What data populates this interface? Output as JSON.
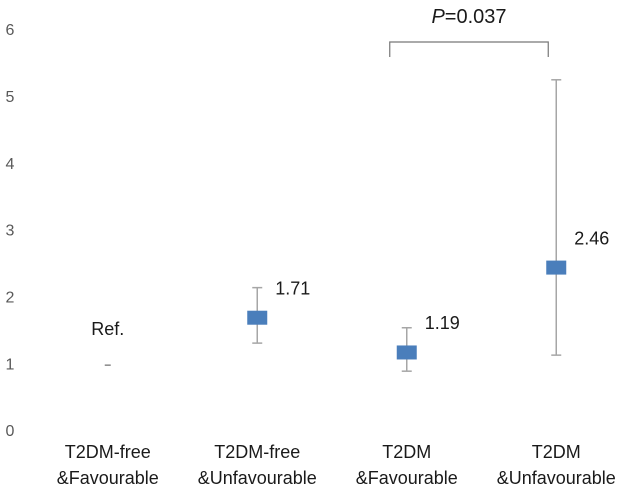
{
  "chart_data": {
    "type": "errorbar",
    "categories": [
      [
        "T2DM-free",
        "&Favourable"
      ],
      [
        "T2DM-free",
        "&Unfavourable"
      ],
      [
        "T2DM",
        "&Favourable"
      ],
      [
        "T2DM",
        "&Unfavourable"
      ]
    ],
    "values": [
      1,
      1.71,
      1.19,
      2.46
    ],
    "lower": [
      null,
      1.33,
      0.91,
      1.15
    ],
    "upper": [
      null,
      2.16,
      1.56,
      5.27
    ],
    "reference_label": "Ref.",
    "color": "#4a7ebb",
    "error_color": "#a6a6a6",
    "ylim": [
      0,
      6
    ],
    "yticks": [
      0,
      1,
      2,
      3,
      4,
      5,
      6
    ],
    "annotation": {
      "text": "P=0.037",
      "between": [
        2,
        3
      ]
    }
  }
}
